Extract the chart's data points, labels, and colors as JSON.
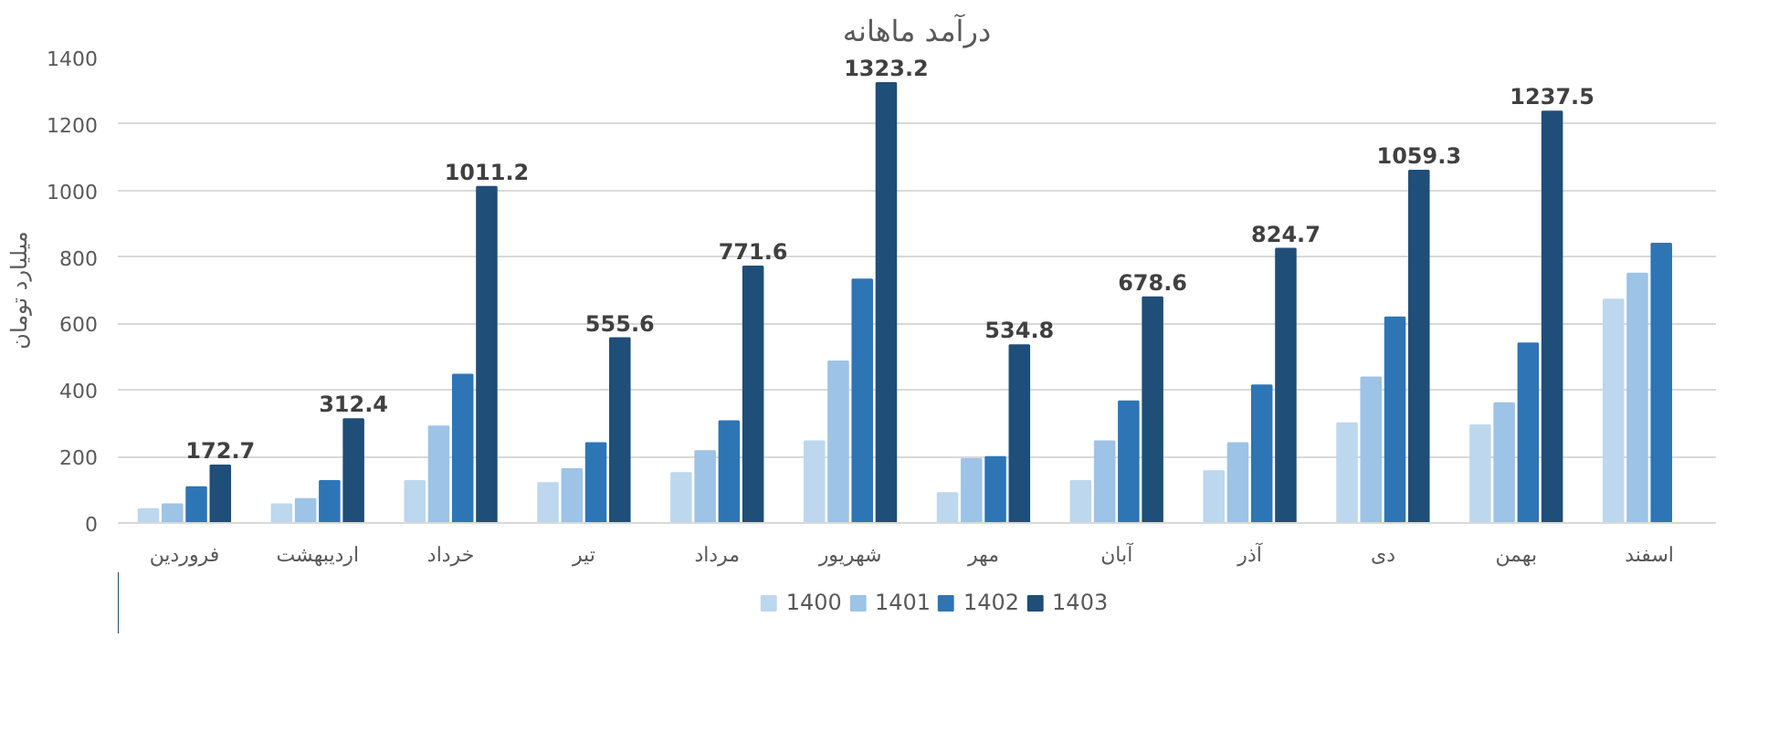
{
  "chart_data": {
    "type": "bar",
    "title": "درآمد ماهانه",
    "ylabel": "میلیارد تومان",
    "categories": [
      "فروردین",
      "اردیبهشت",
      "خرداد",
      "تیر",
      "مرداد",
      "شهریور",
      "مهر",
      "آبان",
      "آذر",
      "دی",
      "بهمن",
      "اسفند"
    ],
    "series": [
      {
        "name": "1400",
        "color": "#bdd7ee",
        "values": [
          42,
          56,
          126,
          120,
          150,
          246,
          90,
          126,
          156,
          300,
          294,
          672
        ]
      },
      {
        "name": "1401",
        "color": "#9dc3e6",
        "values": [
          56,
          72,
          290,
          162,
          216,
          486,
          192,
          246,
          240,
          438,
          360,
          750
        ]
      },
      {
        "name": "1402",
        "color": "#2e75b6",
        "values": [
          108,
          126,
          446,
          240,
          306,
          732,
          198,
          366,
          414,
          618,
          540,
          840
        ]
      },
      {
        "name": "1403",
        "color": "#1f4e79",
        "values": [
          172.7,
          312.4,
          1011.2,
          555.6,
          771.6,
          1323.2,
          534.8,
          678.6,
          824.7,
          1059.3,
          1237.5,
          null
        ],
        "value_labels": [
          "172.7",
          "312.4",
          "1011.2",
          "555.6",
          "771.6",
          "1323.2",
          "534.8",
          "678.6",
          "824.7",
          "1059.3",
          "1237.5",
          null
        ]
      }
    ],
    "ylim": [
      0,
      1400
    ],
    "yticks": [
      0,
      200,
      400,
      600,
      800,
      1000,
      1200,
      1400
    ],
    "grid": "y",
    "legend": "bottom"
  }
}
